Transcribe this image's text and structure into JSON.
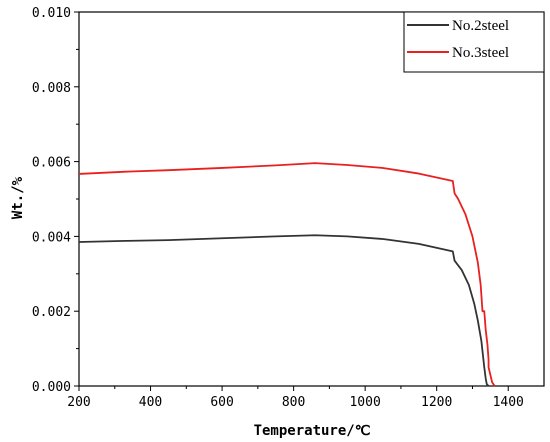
{
  "chart_data": {
    "type": "line",
    "title": "",
    "xlabel": "Temperature/℃",
    "ylabel": "Wt./%",
    "xlim": [
      200,
      1500
    ],
    "ylim": [
      0,
      0.01
    ],
    "x_ticks": [
      200,
      400,
      600,
      800,
      1000,
      1200,
      1400
    ],
    "x_tick_labels": [
      "200",
      "400",
      "600",
      "800",
      "1000",
      "1200",
      "1400"
    ],
    "y_ticks": [
      0,
      0.002,
      0.004,
      0.006,
      0.008,
      0.01
    ],
    "y_tick_labels": [
      "0.000",
      "0.002",
      "0.004",
      "0.006",
      "0.008",
      "0.010"
    ],
    "grid": false,
    "legend_position": "top-right",
    "series": [
      {
        "name": "No.2steel",
        "color": "#333333",
        "points": [
          [
            200,
            0.00385
          ],
          [
            330,
            0.00388
          ],
          [
            450,
            0.0039
          ],
          [
            600,
            0.00395
          ],
          [
            750,
            0.004
          ],
          [
            860,
            0.00403
          ],
          [
            950,
            0.004
          ],
          [
            1050,
            0.00393
          ],
          [
            1150,
            0.0038
          ],
          [
            1245,
            0.0036
          ],
          [
            1250,
            0.00335
          ],
          [
            1270,
            0.0031
          ],
          [
            1290,
            0.0027
          ],
          [
            1305,
            0.0022
          ],
          [
            1315,
            0.00175
          ],
          [
            1325,
            0.0012
          ],
          [
            1333,
            0.0005
          ],
          [
            1337,
            0.0002
          ],
          [
            1340,
            5e-05
          ],
          [
            1345,
            0.0
          ]
        ]
      },
      {
        "name": "No.3steel",
        "color": "#e8211f",
        "points": [
          [
            200,
            0.00567
          ],
          [
            330,
            0.00573
          ],
          [
            450,
            0.00577
          ],
          [
            600,
            0.00583
          ],
          [
            750,
            0.0059
          ],
          [
            860,
            0.00596
          ],
          [
            950,
            0.00591
          ],
          [
            1050,
            0.00583
          ],
          [
            1150,
            0.00568
          ],
          [
            1245,
            0.00548
          ],
          [
            1250,
            0.00515
          ],
          [
            1260,
            0.005
          ],
          [
            1280,
            0.0046
          ],
          [
            1300,
            0.004
          ],
          [
            1315,
            0.0033
          ],
          [
            1323,
            0.0027
          ],
          [
            1328,
            0.002
          ],
          [
            1333,
            0.002
          ],
          [
            1337,
            0.0015
          ],
          [
            1342,
            0.0011
          ],
          [
            1345,
            0.0007
          ],
          [
            1345,
            0.0005
          ],
          [
            1350,
            0.0003
          ],
          [
            1355,
            0.0001
          ],
          [
            1362,
            0.0
          ]
        ]
      }
    ]
  }
}
